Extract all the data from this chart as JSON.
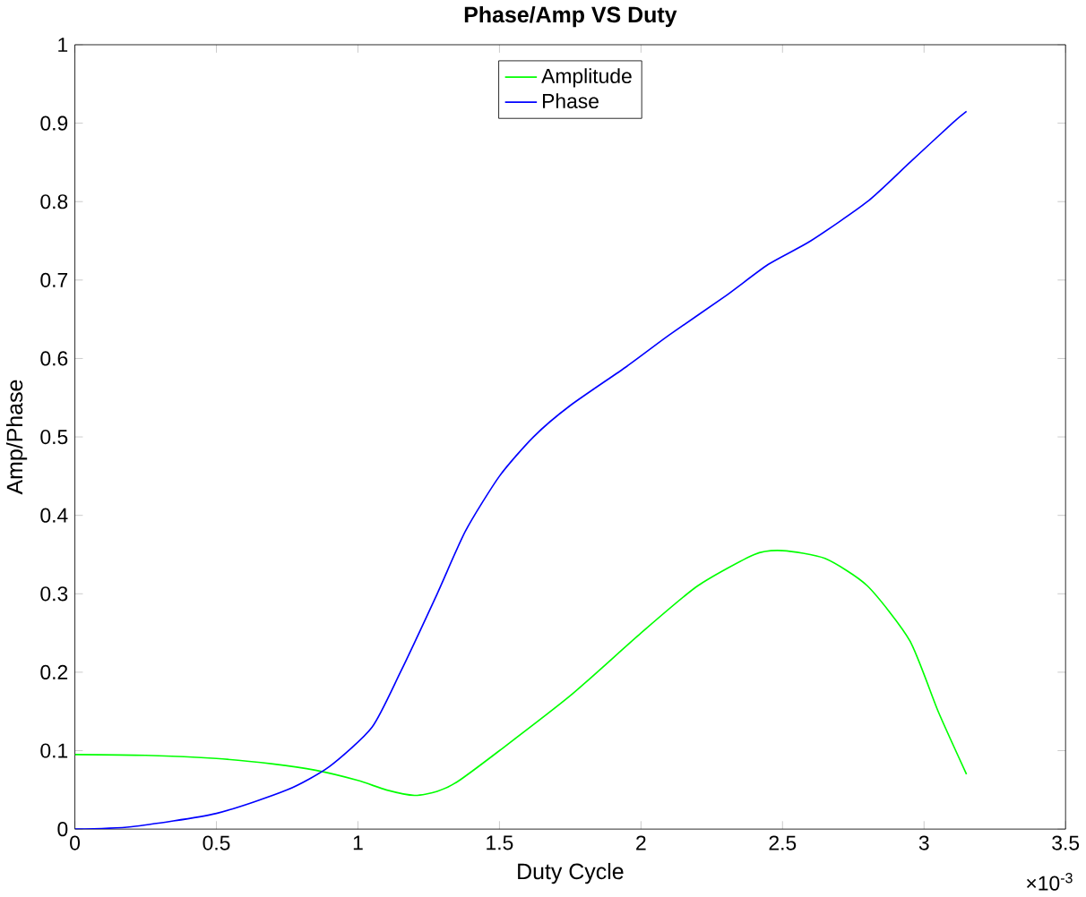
{
  "chart_data": {
    "type": "line",
    "title": "Phase/Amp VS Duty",
    "xlabel": "Duty Cycle",
    "ylabel": "Amp/Phase",
    "annotations": [
      "×10$^{-3}$"
    ],
    "xlim": [
      0,
      3.5
    ],
    "ylim": [
      0,
      1
    ],
    "xticks": [
      0,
      0.5,
      1,
      1.5,
      2,
      2.5,
      3,
      3.5
    ],
    "yticks": [
      0,
      0.1,
      0.2,
      0.3,
      0.4,
      0.5,
      0.6,
      0.7,
      0.8,
      0.9,
      1
    ],
    "legend": "top",
    "grid": false,
    "series": [
      {
        "name": "Amplitude",
        "color": "#00ff00",
        "x": [
          0,
          0.25,
          0.5,
          0.7,
          0.85,
          1.0,
          1.1,
          1.2,
          1.28,
          1.35,
          1.5,
          1.75,
          2.0,
          2.2,
          2.4,
          2.5,
          2.65,
          2.8,
          2.95,
          3.05,
          3.15
        ],
        "values": [
          0.095,
          0.094,
          0.09,
          0.083,
          0.075,
          0.062,
          0.05,
          0.043,
          0.048,
          0.06,
          0.1,
          0.17,
          0.25,
          0.31,
          0.35,
          0.355,
          0.345,
          0.31,
          0.24,
          0.15,
          0.07
        ]
      },
      {
        "name": "Phase",
        "color": "#0000ff",
        "x": [
          0,
          0.2,
          0.5,
          0.75,
          0.9,
          1.05,
          1.15,
          1.28,
          1.38,
          1.5,
          1.62,
          1.75,
          1.95,
          2.1,
          2.3,
          2.45,
          2.6,
          2.8,
          2.95,
          3.1,
          3.15
        ],
        "values": [
          0,
          0.003,
          0.02,
          0.05,
          0.08,
          0.13,
          0.2,
          0.3,
          0.38,
          0.45,
          0.5,
          0.54,
          0.59,
          0.63,
          0.68,
          0.72,
          0.75,
          0.8,
          0.85,
          0.9,
          0.915
        ]
      }
    ]
  }
}
